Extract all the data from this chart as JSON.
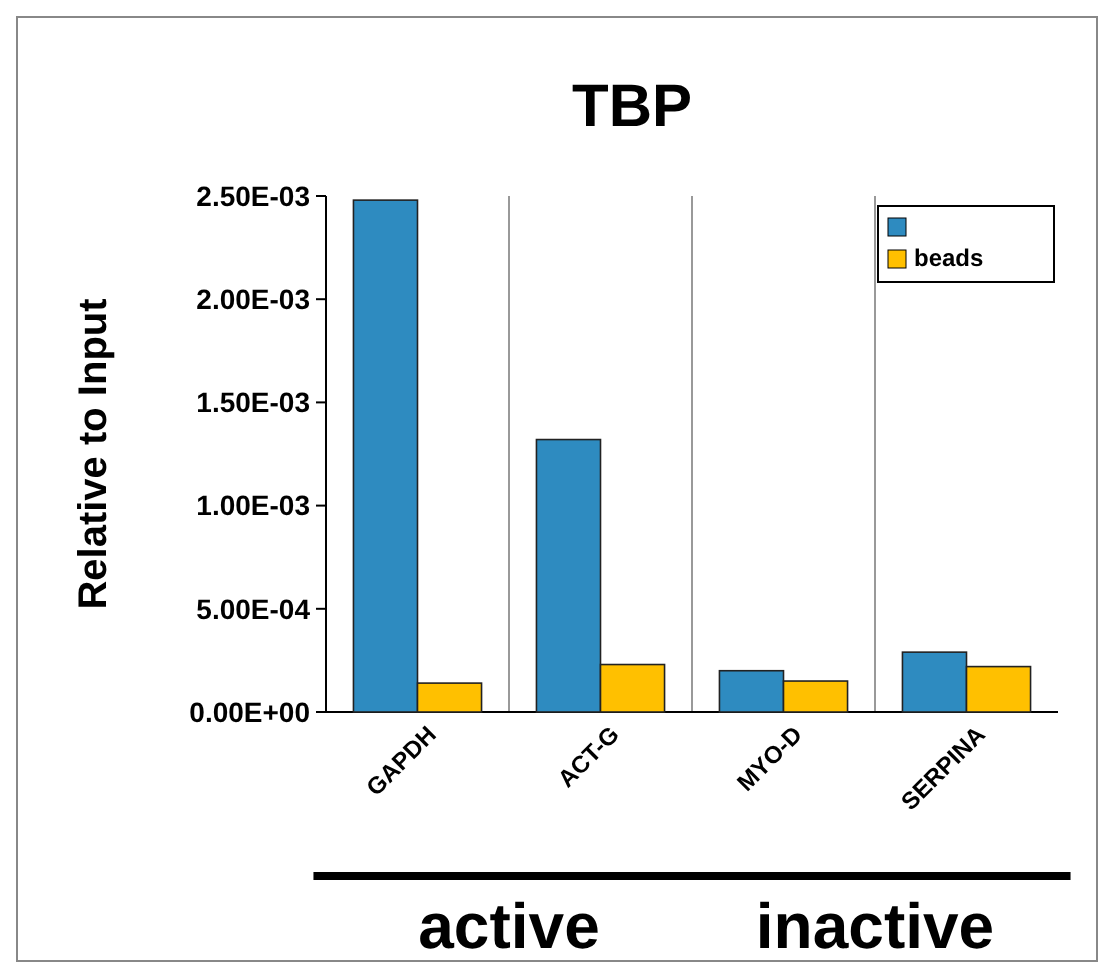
{
  "chart_data": {
    "type": "bar",
    "title": "TBP",
    "ylabel": "Relative to Input",
    "categories": [
      "GAPDH",
      "ACT-G",
      "MYO-D",
      "SERPINA"
    ],
    "series": [
      {
        "color": "#2e8bc0",
        "values": [
          0.00248,
          0.00132,
          0.0002,
          0.00029
        ]
      },
      {
        "name": "beads",
        "color": "#ffc000",
        "values": [
          0.00014,
          0.00023,
          0.00015,
          0.00022
        ]
      }
    ],
    "ylim": [
      0,
      0.0025
    ],
    "yticks": [
      {
        "value": 0,
        "label": "0.00E+00"
      },
      {
        "value": 0.0005,
        "label": "5.00E-04"
      },
      {
        "value": 0.001,
        "label": "1.00E-03"
      },
      {
        "value": 0.0015,
        "label": "1.50E-03"
      },
      {
        "value": 0.002,
        "label": "2.00E-03"
      },
      {
        "value": 0.0025,
        "label": "2.50E-03"
      }
    ],
    "legend": "top right",
    "annotations": [
      "active",
      "inactive"
    ]
  }
}
